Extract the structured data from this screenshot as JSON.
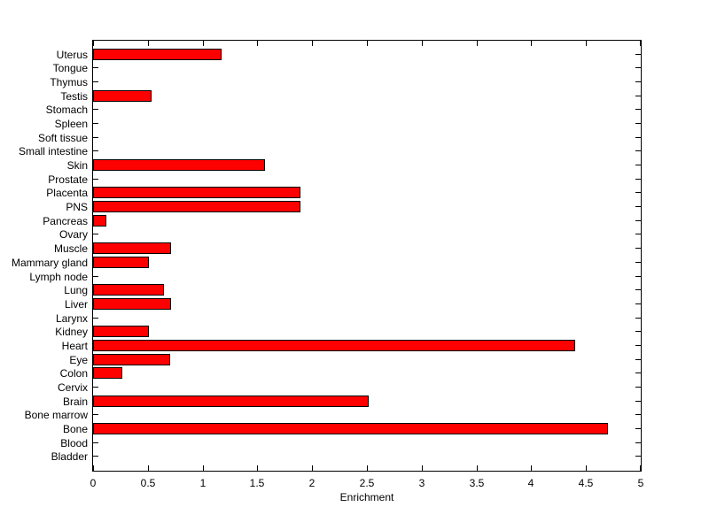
{
  "figure": {
    "background": "#ffffff",
    "title": ""
  },
  "chart_data": {
    "type": "bar",
    "orientation": "horizontal",
    "title": "",
    "xlabel": "Enrichment",
    "ylabel": "",
    "xlim": [
      0,
      5
    ],
    "xtick_labels": [
      "0",
      "0.5",
      "1",
      "1.5",
      "2",
      "2.5",
      "3",
      "3.5",
      "4",
      "4.5",
      "5"
    ],
    "grid": false,
    "legend": "none",
    "box": true,
    "bar_color": "#ff0000",
    "bar_edge_color": "#000000",
    "axis_color": "#000000",
    "category_order": "top-to-bottom",
    "categories": [
      "Uterus",
      "Tongue",
      "Thymus",
      "Testis",
      "Stomach",
      "Spleen",
      "Soft tissue",
      "Small intestine",
      "Skin",
      "Prostate",
      "Placenta",
      "PNS",
      "Pancreas",
      "Ovary",
      "Muscle",
      "Mammary gland",
      "Lymph node",
      "Lung",
      "Liver",
      "Larynx",
      "Kidney",
      "Heart",
      "Eye",
      "Colon",
      "Cervix",
      "Brain",
      "Bone marrow",
      "Bone",
      "Blood",
      "Bladder"
    ],
    "values": [
      1.17,
      0,
      0,
      0.53,
      0,
      0,
      0,
      0,
      1.57,
      0,
      1.89,
      1.89,
      0.12,
      0,
      0.71,
      0.51,
      0,
      0.65,
      0.71,
      0,
      0.51,
      4.4,
      0.7,
      0.27,
      0,
      2.52,
      0,
      4.7,
      0,
      0
    ]
  }
}
